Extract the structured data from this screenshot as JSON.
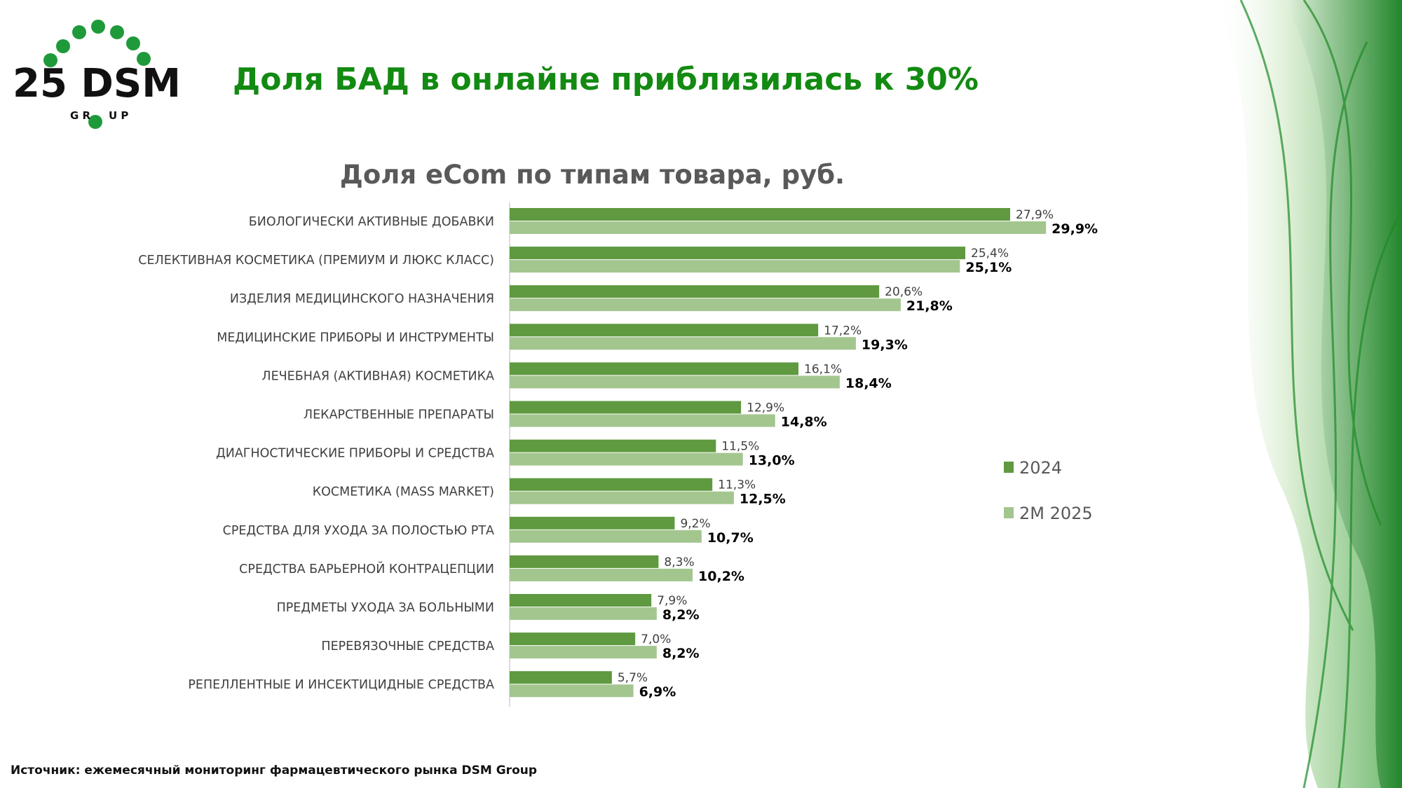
{
  "logo": {
    "text": "25 DSM",
    "sub": "GROUP"
  },
  "title": "Доля БАД в онлайне приблизилась к 30%",
  "source": "Источник: ежемесячный мониторинг фармацевтического рынка DSM Group",
  "colors": {
    "s2024": "#5f9940",
    "s2025": "#a3c68f",
    "title": "#138a12"
  },
  "chart_data": {
    "type": "bar",
    "orientation": "horizontal",
    "title": "Доля eCom по типам товара, руб.",
    "categories": [
      "БИОЛОГИЧЕСКИ АКТИВНЫЕ ДОБАВКИ",
      "СЕЛЕКТИВНАЯ КОСМЕТИКА (ПРЕМИУМ И ЛЮКС КЛАСС)",
      "ИЗДЕЛИЯ МЕДИЦИНСКОГО НАЗНАЧЕНИЯ",
      "МЕДИЦИНСКИЕ ПРИБОРЫ И ИНСТРУМЕНТЫ",
      "ЛЕЧЕБНАЯ (АКТИВНАЯ) КОСМЕТИКА",
      "ЛЕКАРСТВЕННЫЕ ПРЕПАРАТЫ",
      "ДИАГНОСТИЧЕСКИЕ ПРИБОРЫ И СРЕДСТВА",
      "КОСМЕТИКА (MASS MARKET)",
      "СРЕДСТВА ДЛЯ УХОДА ЗА ПОЛОСТЬЮ РТА",
      "СРЕДСТВА БАРЬЕРНОЙ КОНТРАЦЕПЦИИ",
      "ПРЕДМЕТЫ УХОДА ЗА БОЛЬНЫМИ",
      "ПЕРЕВЯЗОЧНЫЕ СРЕДСТВА",
      "РЕПЕЛЛЕНТНЫЕ И ИНСЕКТИЦИДНЫЕ СРЕДСТВА"
    ],
    "series": [
      {
        "name": "2024",
        "values": [
          27.9,
          25.4,
          20.6,
          17.2,
          16.1,
          12.9,
          11.5,
          11.3,
          9.2,
          8.3,
          7.9,
          7.0,
          5.7
        ],
        "labels": [
          "27,9%",
          "25,4%",
          "20,6%",
          "17,2%",
          "16,1%",
          "12,9%",
          "11,5%",
          "11,3%",
          "9,2%",
          "8,3%",
          "7,9%",
          "7,0%",
          "5,7%"
        ]
      },
      {
        "name": "2M 2025",
        "values": [
          29.9,
          25.1,
          21.8,
          19.3,
          18.4,
          14.8,
          13.0,
          12.5,
          10.7,
          10.2,
          8.2,
          8.2,
          6.9
        ],
        "labels": [
          "29,9%",
          "25,1%",
          "21,8%",
          "19,3%",
          "18,4%",
          "14,8%",
          "13,0%",
          "12,5%",
          "10,7%",
          "10,2%",
          "8,2%",
          "8,2%",
          "6,9%"
        ]
      }
    ],
    "xlim": [
      0,
      30
    ],
    "grid": false,
    "legend": "right"
  }
}
